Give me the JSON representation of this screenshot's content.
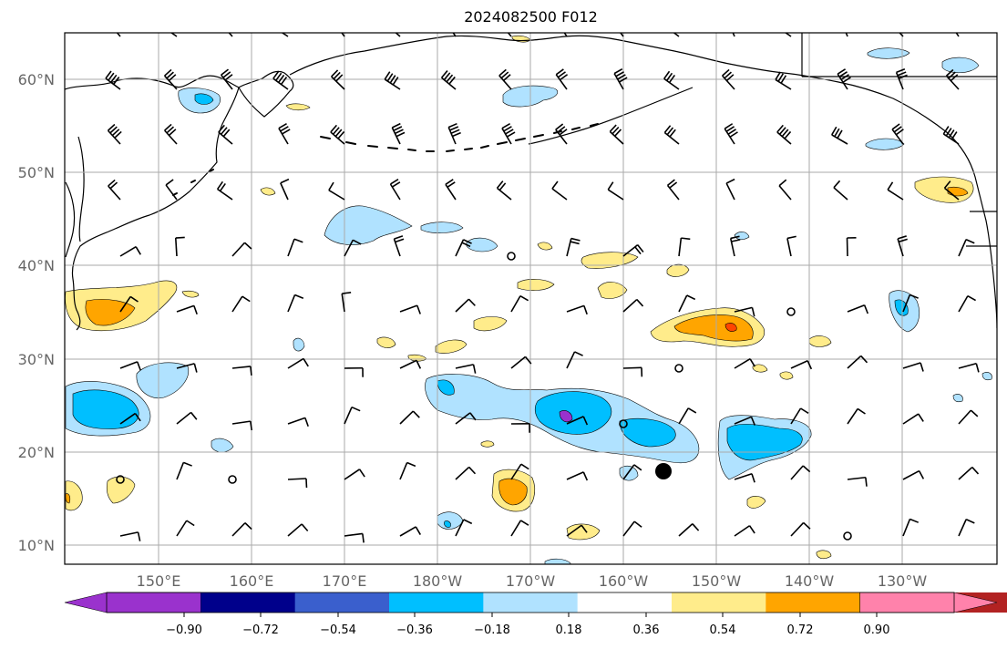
{
  "title": "2024082500 F012",
  "map": {
    "lat_labels": [
      "60°N",
      "50°N",
      "40°N",
      "30°N",
      "20°N",
      "10°N"
    ],
    "lon_labels": [
      "150°E",
      "160°E",
      "170°E",
      "180°W",
      "170°W",
      "160°W",
      "150°W",
      "140°W",
      "130°W"
    ]
  },
  "colorbar": {
    "tick_labels": [
      "−0.90",
      "−0.72",
      "−0.54",
      "−0.36",
      "−0.18",
      "0.18",
      "0.36",
      "0.54",
      "0.72",
      "0.90"
    ],
    "colors": [
      "#9a32cd",
      "#00008b",
      "#3a5fcd",
      "#00bfff",
      "#b0e2ff",
      "#ffffff",
      "#ffec8b",
      "#ffa500",
      "#ff4500",
      "#b22222",
      "#ff82ab"
    ],
    "extend": "both"
  },
  "colors": {
    "land_outline": "#000000",
    "grid": "#aaaaaa",
    "barb": "#000000",
    "label_gray": "#666666"
  }
}
